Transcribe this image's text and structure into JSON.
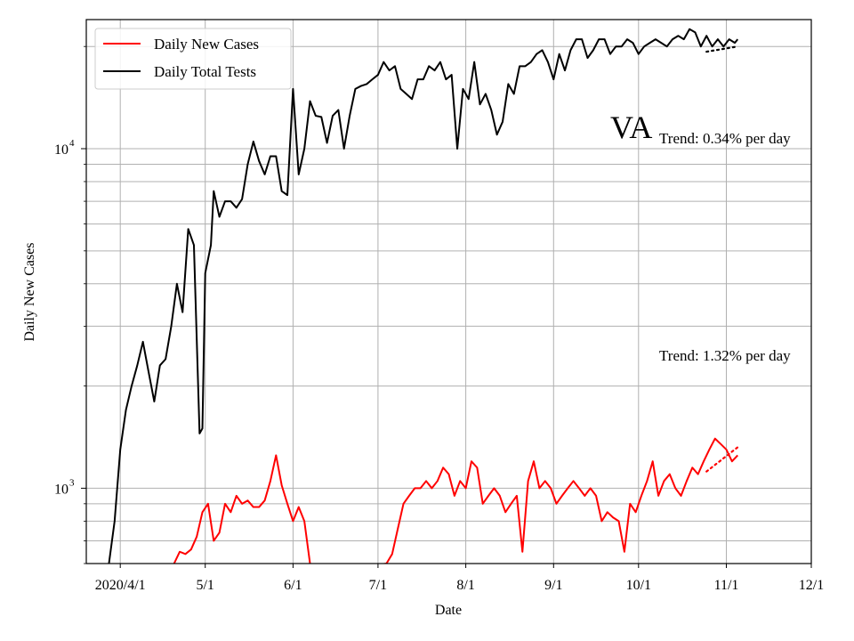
{
  "chart_data": {
    "type": "line",
    "ylabel": "Daily New Cases",
    "xlabel": "Date",
    "yscale": "log",
    "ylim": [
      600,
      24000
    ],
    "x_ticks": [
      "2020/4/1",
      "5/1",
      "6/1",
      "7/1",
      "8/1",
      "9/1",
      "10/1",
      "11/1",
      "12/1"
    ],
    "y_ticks": [
      {
        "value": 1000,
        "base": "10",
        "exp": "3"
      },
      {
        "value": 10000,
        "base": "10",
        "exp": "4"
      }
    ],
    "grid": true,
    "legend_position": "top-left",
    "state_label": "VA",
    "annotations": [
      {
        "text": "Trend: 0.34% per day",
        "series": "Daily Total Tests"
      },
      {
        "text": "Trend: 1.32% per day",
        "series": "Daily New Cases"
      }
    ],
    "series": [
      {
        "name": "Daily New Cases",
        "color": "#ff0000",
        "x": [
          "2020-04-20",
          "2020-04-22",
          "2020-04-24",
          "2020-04-26",
          "2020-04-28",
          "2020-04-30",
          "2020-05-02",
          "2020-05-04",
          "2020-05-06",
          "2020-05-08",
          "2020-05-10",
          "2020-05-12",
          "2020-05-14",
          "2020-05-16",
          "2020-05-18",
          "2020-05-20",
          "2020-05-22",
          "2020-05-24",
          "2020-05-26",
          "2020-05-28",
          "2020-05-30",
          "2020-06-01",
          "2020-06-03",
          "2020-06-05",
          "2020-06-07",
          "2020-06-09",
          "2020-06-10",
          "2020-07-04",
          "2020-07-06",
          "2020-07-08",
          "2020-07-10",
          "2020-07-12",
          "2020-07-14",
          "2020-07-16",
          "2020-07-18",
          "2020-07-20",
          "2020-07-22",
          "2020-07-24",
          "2020-07-26",
          "2020-07-28",
          "2020-07-30",
          "2020-08-01",
          "2020-08-03",
          "2020-08-05",
          "2020-08-07",
          "2020-08-09",
          "2020-08-11",
          "2020-08-13",
          "2020-08-15",
          "2020-08-17",
          "2020-08-19",
          "2020-08-21",
          "2020-08-23",
          "2020-08-25",
          "2020-08-27",
          "2020-08-29",
          "2020-08-31",
          "2020-09-02",
          "2020-09-04",
          "2020-09-06",
          "2020-09-08",
          "2020-09-10",
          "2020-09-12",
          "2020-09-14",
          "2020-09-16",
          "2020-09-18",
          "2020-09-20",
          "2020-09-22",
          "2020-09-24",
          "2020-09-26",
          "2020-09-28",
          "2020-09-30",
          "2020-10-02",
          "2020-10-04",
          "2020-10-06",
          "2020-10-08",
          "2020-10-10",
          "2020-10-12",
          "2020-10-14",
          "2020-10-16",
          "2020-10-18",
          "2020-10-20",
          "2020-10-22",
          "2020-10-24",
          "2020-10-26",
          "2020-10-28",
          "2020-10-30",
          "2020-11-01",
          "2020-11-03",
          "2020-11-05"
        ],
        "values": [
          600,
          650,
          640,
          660,
          720,
          850,
          900,
          700,
          740,
          900,
          850,
          950,
          900,
          920,
          880,
          880,
          920,
          1050,
          1250,
          1020,
          900,
          800,
          880,
          800,
          600,
          560,
          560,
          600,
          640,
          760,
          900,
          950,
          1000,
          1000,
          1050,
          1000,
          1050,
          1150,
          1100,
          950,
          1050,
          1000,
          1200,
          1150,
          900,
          950,
          1000,
          950,
          850,
          900,
          950,
          650,
          1050,
          1200,
          1000,
          1050,
          1000,
          900,
          950,
          1000,
          1050,
          1000,
          950,
          1000,
          950,
          800,
          850,
          820,
          800,
          650,
          900,
          850,
          950,
          1050,
          1200,
          950,
          1050,
          1100,
          1000,
          950,
          1050,
          1150,
          1100,
          1200,
          1300,
          1400,
          1350,
          1300,
          1200,
          1250
        ]
      },
      {
        "name": "Daily Total Tests",
        "color": "#000000",
        "x": [
          "2020-03-28",
          "2020-03-30",
          "2020-04-01",
          "2020-04-03",
          "2020-04-05",
          "2020-04-07",
          "2020-04-09",
          "2020-04-11",
          "2020-04-13",
          "2020-04-15",
          "2020-04-17",
          "2020-04-19",
          "2020-04-21",
          "2020-04-23",
          "2020-04-25",
          "2020-04-27",
          "2020-04-29",
          "2020-04-30",
          "2020-05-01",
          "2020-05-03",
          "2020-05-04",
          "2020-05-06",
          "2020-05-08",
          "2020-05-10",
          "2020-05-12",
          "2020-05-14",
          "2020-05-16",
          "2020-05-18",
          "2020-05-20",
          "2020-05-22",
          "2020-05-24",
          "2020-05-26",
          "2020-05-28",
          "2020-05-30",
          "2020-06-01",
          "2020-06-03",
          "2020-06-05",
          "2020-06-07",
          "2020-06-09",
          "2020-06-11",
          "2020-06-13",
          "2020-06-15",
          "2020-06-17",
          "2020-06-19",
          "2020-06-21",
          "2020-06-23",
          "2020-06-25",
          "2020-06-27",
          "2020-06-29",
          "2020-07-01",
          "2020-07-03",
          "2020-07-05",
          "2020-07-07",
          "2020-07-09",
          "2020-07-11",
          "2020-07-13",
          "2020-07-15",
          "2020-07-17",
          "2020-07-19",
          "2020-07-21",
          "2020-07-23",
          "2020-07-25",
          "2020-07-27",
          "2020-07-29",
          "2020-07-31",
          "2020-08-02",
          "2020-08-04",
          "2020-08-06",
          "2020-08-08",
          "2020-08-10",
          "2020-08-12",
          "2020-08-14",
          "2020-08-16",
          "2020-08-18",
          "2020-08-20",
          "2020-08-22",
          "2020-08-24",
          "2020-08-26",
          "2020-08-28",
          "2020-08-30",
          "2020-09-01",
          "2020-09-03",
          "2020-09-05",
          "2020-09-07",
          "2020-09-09",
          "2020-09-11",
          "2020-09-13",
          "2020-09-15",
          "2020-09-17",
          "2020-09-19",
          "2020-09-21",
          "2020-09-23",
          "2020-09-25",
          "2020-09-27",
          "2020-09-29",
          "2020-10-01",
          "2020-10-03",
          "2020-10-05",
          "2020-10-07",
          "2020-10-09",
          "2020-10-11",
          "2020-10-13",
          "2020-10-15",
          "2020-10-17",
          "2020-10-19",
          "2020-10-21",
          "2020-10-23",
          "2020-10-25",
          "2020-10-27",
          "2020-10-29",
          "2020-10-31",
          "2020-11-02",
          "2020-11-04",
          "2020-11-05"
        ],
        "values": [
          600,
          800,
          1300,
          1700,
          2000,
          2300,
          2700,
          2200,
          1800,
          2300,
          2400,
          3000,
          4000,
          3300,
          5800,
          5200,
          1450,
          1500,
          4300,
          5200,
          7500,
          6300,
          7000,
          7000,
          6700,
          7100,
          9000,
          10500,
          9200,
          8400,
          9500,
          9500,
          7500,
          7300,
          15000,
          8400,
          10000,
          13800,
          12500,
          12400,
          10400,
          12500,
          13000,
          10000,
          12500,
          15000,
          15300,
          15500,
          16000,
          16500,
          18000,
          17000,
          17500,
          15000,
          14500,
          14000,
          16000,
          16000,
          17500,
          17000,
          18000,
          16000,
          16500,
          10000,
          15000,
          14000,
          18000,
          13500,
          14500,
          13000,
          11000,
          12000,
          15500,
          14500,
          17500,
          17500,
          18000,
          19000,
          19500,
          18000,
          16000,
          19000,
          17000,
          19500,
          21000,
          21000,
          18500,
          19500,
          21000,
          21000,
          19000,
          20000,
          20000,
          21000,
          20500,
          19000,
          20000,
          20500,
          21000,
          20500,
          20000,
          21000,
          21500,
          21000,
          22500,
          22000,
          20000,
          21500,
          20000,
          21000,
          20000,
          21000,
          20500,
          21000
        ]
      }
    ],
    "trend_lines": [
      {
        "series": "Daily New Cases",
        "x": [
          "2020-10-25",
          "2020-11-05"
        ],
        "values": [
          1120,
          1320
        ]
      },
      {
        "series": "Daily Total Tests",
        "x": [
          "2020-10-25",
          "2020-11-05"
        ],
        "values": [
          19300,
          20000
        ]
      }
    ]
  }
}
